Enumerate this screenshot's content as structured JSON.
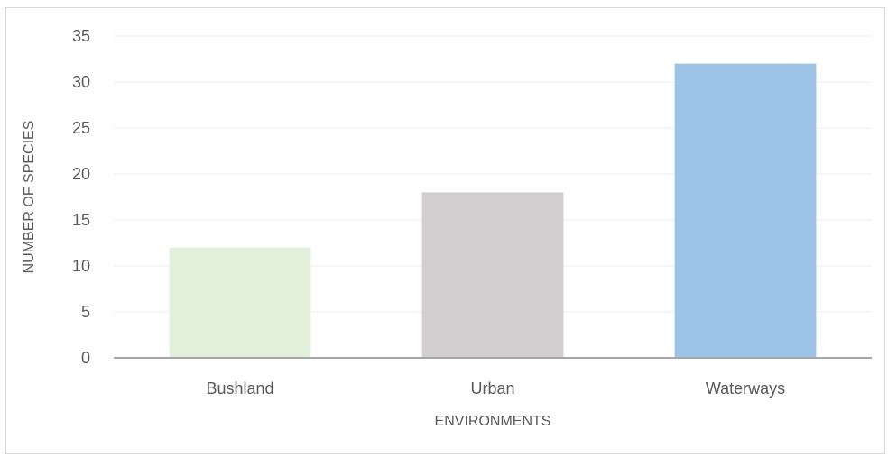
{
  "chart_data": {
    "type": "bar",
    "categories": [
      "Bushland",
      "Urban",
      "Waterways"
    ],
    "values": [
      12,
      18,
      32
    ],
    "title": "",
    "xlabel": "ENVIRONMENTS",
    "ylabel": "NUMBER OF SPECIES",
    "ylim": [
      0,
      35
    ],
    "yticks": [
      0,
      5,
      10,
      15,
      20,
      25,
      30,
      35
    ],
    "grid": true,
    "legend": "none",
    "colors": [
      "#e2efda",
      "#d0cece",
      "#9dc3e6"
    ],
    "gridline_color": "#eeeeee",
    "axis_color": "#a6a6a6"
  }
}
